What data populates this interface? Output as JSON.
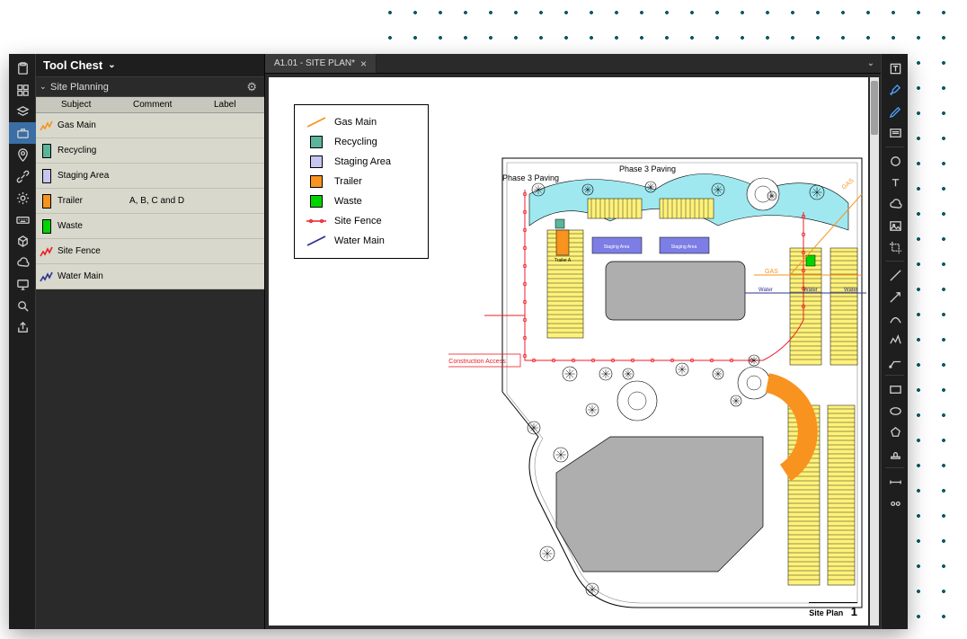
{
  "panel": {
    "title": "Tool Chest",
    "section": "Site Planning",
    "columns": {
      "subject": "Subject",
      "comment": "Comment",
      "label": "Label"
    },
    "rows": [
      {
        "swatch_type": "line",
        "swatch_color": "#f7931e",
        "subject": "Gas Main",
        "comment": "",
        "label": ""
      },
      {
        "swatch_type": "box",
        "swatch_color": "#5bb59b",
        "subject": "Recycling",
        "comment": "",
        "label": ""
      },
      {
        "swatch_type": "box",
        "swatch_color": "#c5c5f0",
        "subject": "Staging Area",
        "comment": "",
        "label": ""
      },
      {
        "swatch_type": "box",
        "swatch_color": "#f7931e",
        "subject": "Trailer",
        "comment": "A, B, C and D",
        "label": ""
      },
      {
        "swatch_type": "box",
        "swatch_color": "#00d400",
        "subject": "Waste",
        "comment": "",
        "label": ""
      },
      {
        "swatch_type": "line",
        "swatch_color": "#ed1c24",
        "subject": "Site Fence",
        "comment": "",
        "label": ""
      },
      {
        "swatch_type": "line",
        "swatch_color": "#2e3192",
        "subject": "Water Main",
        "comment": "",
        "label": ""
      }
    ]
  },
  "tab": {
    "label": "A1.01 - SITE PLAN*"
  },
  "legend": {
    "items": [
      {
        "type": "line-diag",
        "color": "#f7931e",
        "label": "Gas Main"
      },
      {
        "type": "box",
        "color": "#5bb59b",
        "label": "Recycling"
      },
      {
        "type": "box",
        "color": "#c5c5f0",
        "label": "Staging Area"
      },
      {
        "type": "box",
        "color": "#f7931e",
        "label": "Trailer"
      },
      {
        "type": "box",
        "color": "#00d400",
        "label": "Waste"
      },
      {
        "type": "line-dot",
        "color": "#ed1c24",
        "label": "Site Fence"
      },
      {
        "type": "line-diag",
        "color": "#2e3192",
        "label": "Water Main"
      }
    ]
  },
  "plan": {
    "labels": {
      "phase3a": "Phase 3 Paving",
      "phase3b": "Phase 3 Paving",
      "constructionAccess": "Construction Access",
      "gas": "GAS",
      "water": "Water",
      "stagingA": "Staging Area",
      "stagingB": "Staging Area",
      "trailerA": "Trailer A"
    },
    "colors": {
      "parking": "#fff27a",
      "pavingFill": "#9fe8f0",
      "buildingFill": "#aeaeae",
      "stagingFill": "#7d7de6",
      "trailerFill": "#f7931e",
      "wasteFill": "#00d400",
      "recyclingFill": "#5bb59b",
      "fence": "#ed1c24",
      "gasLine": "#f7931e",
      "waterLine": "#2e3192",
      "outline": "#000000"
    },
    "footer": {
      "title": "Site Plan",
      "number": "1"
    }
  }
}
